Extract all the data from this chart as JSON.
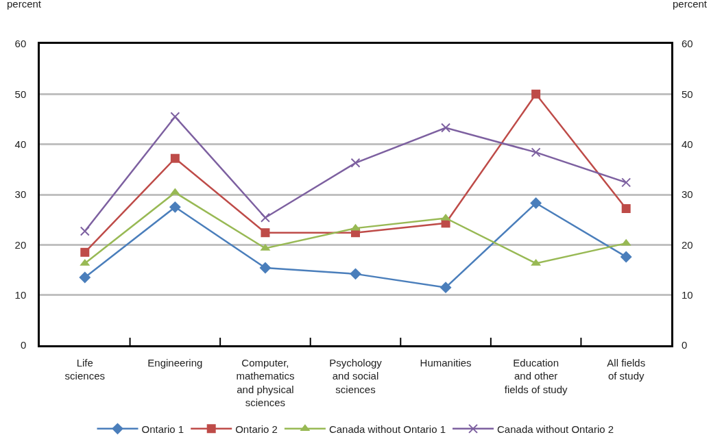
{
  "chart_data": {
    "type": "line",
    "categories": [
      "Life\nsciences",
      "Engineering",
      "Computer,\nmathematics\nand physical\nsciences",
      "Psychology\nand social\nsciences",
      "Humanities",
      "Education\nand other\nfields of study",
      "All fields\nof study"
    ],
    "series": [
      {
        "name": "Ontario 1",
        "color": "#4a7ebb",
        "marker": "diamond",
        "values": [
          13.5,
          27.5,
          15.4,
          14.2,
          11.5,
          28.3,
          17.6
        ]
      },
      {
        "name": "Ontario 2",
        "color": "#be4b48",
        "marker": "square",
        "values": [
          18.5,
          37.2,
          22.4,
          22.4,
          24.3,
          50,
          27.2
        ]
      },
      {
        "name": "Canada without Ontario 1",
        "color": "#98b954",
        "marker": "triangle",
        "values": [
          16.3,
          30.4,
          19.3,
          23.3,
          25.3,
          16.3,
          20.3
        ]
      },
      {
        "name": "Canada without Ontario 2",
        "color": "#7d60a0",
        "marker": "cross",
        "values": [
          22.7,
          45.5,
          25.4,
          36.3,
          43.3,
          38.4,
          32.4
        ]
      }
    ],
    "ylabel": "percent",
    "y2label": "percent",
    "ylim": [
      0,
      60
    ],
    "yticks": [
      0,
      10,
      20,
      30,
      40,
      50,
      60
    ],
    "y2lim": [
      0,
      60
    ],
    "y2ticks": [
      0,
      10,
      20,
      30,
      40,
      50,
      60
    ],
    "grid": "y",
    "legend": "bottom",
    "line_style": "solid"
  }
}
